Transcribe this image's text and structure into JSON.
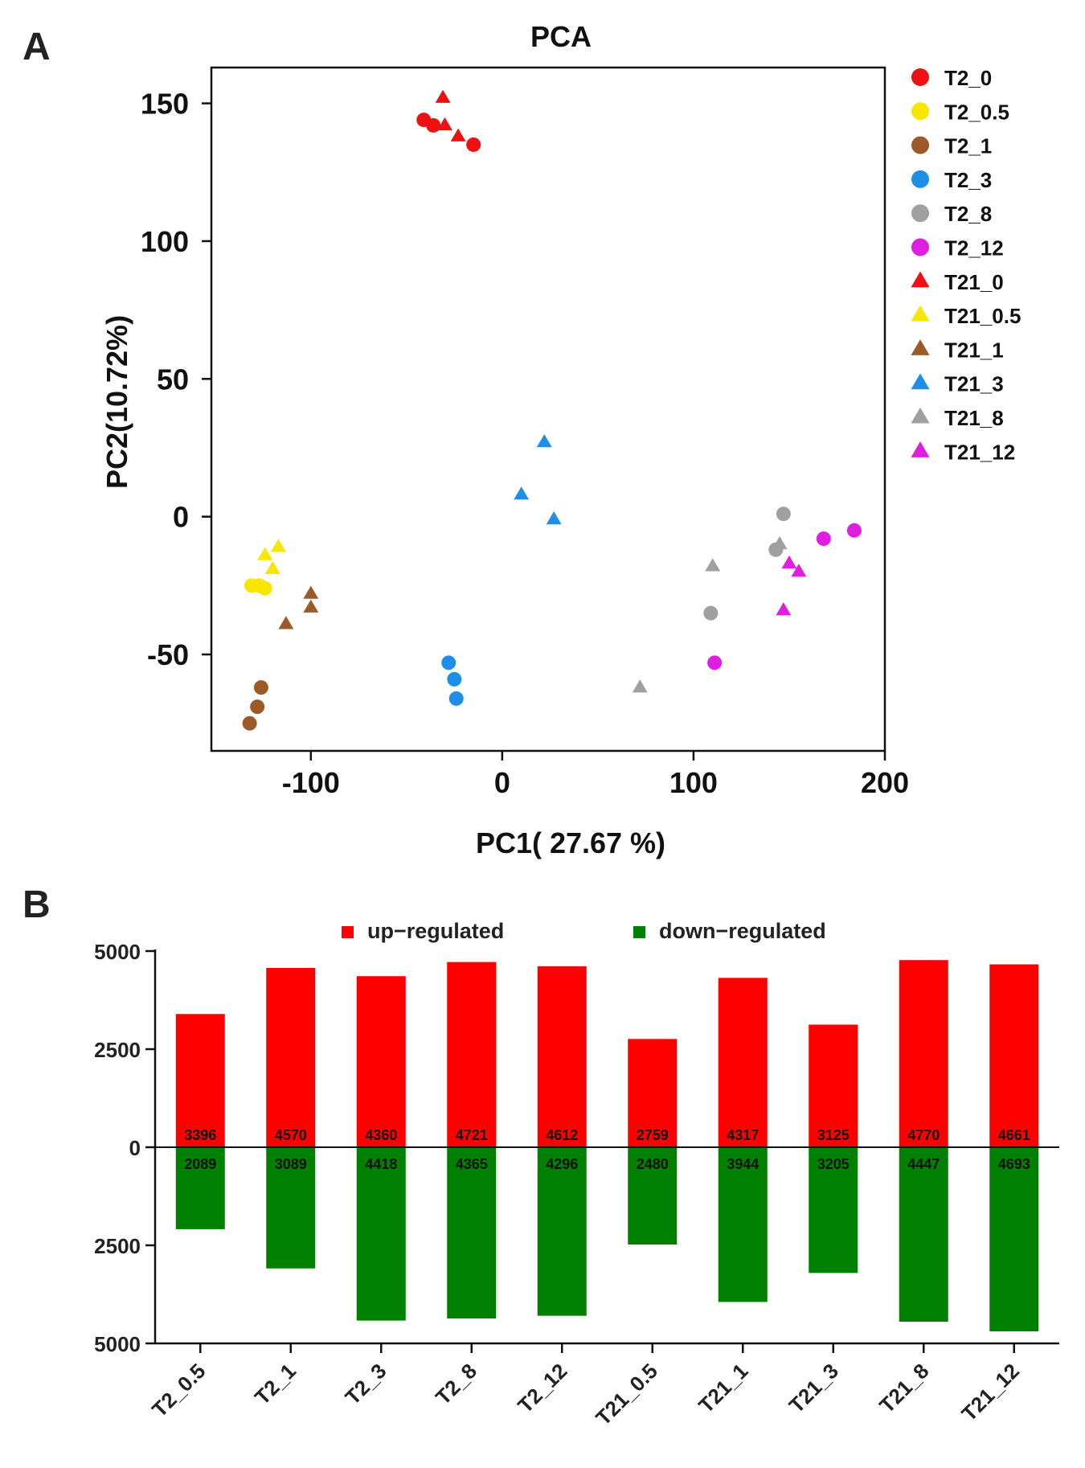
{
  "panels": {
    "a_label": "A",
    "b_label": "B"
  },
  "chart_data": [
    {
      "type": "scatter",
      "title": "PCA",
      "xlabel": "PC1( 27.67 %)",
      "ylabel": "PC2(10.72%)",
      "xlim": [
        -152,
        200
      ],
      "ylim": [
        -85,
        163
      ],
      "xticks": [
        -100,
        0,
        100,
        200
      ],
      "yticks": [
        -50,
        0,
        50,
        100,
        150
      ],
      "xtick_labels": [
        "-100",
        "0",
        "100",
        "200"
      ],
      "ytick_labels": [
        "-50",
        "0",
        "50",
        "100",
        "150"
      ],
      "grid": false,
      "legend_position": "right",
      "series": [
        {
          "name": "T2_0",
          "marker": "circle",
          "color": "#ee1111",
          "points": [
            [
              -41,
              144
            ],
            [
              -36,
              142
            ],
            [
              -15,
              135
            ]
          ]
        },
        {
          "name": "T2_0.5",
          "marker": "circle",
          "color": "#f6e600",
          "points": [
            [
              -131,
              -25
            ],
            [
              -127,
              -25
            ],
            [
              -124,
              -26
            ]
          ]
        },
        {
          "name": "T2_1",
          "marker": "circle",
          "color": "#9b5a28",
          "points": [
            [
              -126,
              -62
            ],
            [
              -128,
              -69
            ],
            [
              -132,
              -75
            ]
          ]
        },
        {
          "name": "T2_3",
          "marker": "circle",
          "color": "#1e8fe6",
          "points": [
            [
              -28,
              -53
            ],
            [
              -25,
              -59
            ],
            [
              -24,
              -66
            ]
          ]
        },
        {
          "name": "T2_8",
          "marker": "circle",
          "color": "#a0a0a0",
          "points": [
            [
              147,
              1
            ],
            [
              143,
              -12
            ],
            [
              109,
              -35
            ]
          ]
        },
        {
          "name": "T2_12",
          "marker": "circle",
          "color": "#e01ee0",
          "points": [
            [
              184,
              -5
            ],
            [
              168,
              -8
            ],
            [
              111,
              -53
            ]
          ]
        },
        {
          "name": "T21_0",
          "marker": "triangle",
          "color": "#ee1111",
          "points": [
            [
              -31,
              152
            ],
            [
              -30,
              142
            ],
            [
              -23,
              138
            ]
          ]
        },
        {
          "name": "T21_0.5",
          "marker": "triangle",
          "color": "#f6e600",
          "points": [
            [
              -117,
              -11
            ],
            [
              -124,
              -14
            ],
            [
              -120,
              -19
            ]
          ]
        },
        {
          "name": "T21_1",
          "marker": "triangle",
          "color": "#9b5a28",
          "points": [
            [
              -100,
              -28
            ],
            [
              -100,
              -33
            ],
            [
              -113,
              -39
            ]
          ]
        },
        {
          "name": "T21_3",
          "marker": "triangle",
          "color": "#1e8fe6",
          "points": [
            [
              22,
              27
            ],
            [
              10,
              8
            ],
            [
              27,
              -1
            ]
          ]
        },
        {
          "name": "T21_8",
          "marker": "triangle",
          "color": "#a0a0a0",
          "points": [
            [
              110,
              -18
            ],
            [
              145,
              -10
            ],
            [
              72,
              -62
            ]
          ]
        },
        {
          "name": "T21_12",
          "marker": "triangle",
          "color": "#e01ee0",
          "points": [
            [
              150,
              -17
            ],
            [
              155,
              -20
            ],
            [
              147,
              -34
            ]
          ]
        }
      ]
    },
    {
      "type": "bar",
      "title": "",
      "xlabel": "",
      "ylabel": "",
      "categories": [
        "T2_0.5",
        "T2_1",
        "T2_3",
        "T2_8",
        "T2_12",
        "T21_0.5",
        "T21_1",
        "T21_3",
        "T21_8",
        "T21_12"
      ],
      "ylim": [
        -5000,
        5000
      ],
      "yticks": [
        5000,
        2500,
        0,
        -2500,
        -5000
      ],
      "ytick_labels": [
        "5000",
        "2500",
        "0",
        "2500",
        "5000"
      ],
      "grid": false,
      "legend_position": "top",
      "series": [
        {
          "name": "up−regulated",
          "color": "#ff0000",
          "values": [
            3396,
            4570,
            4360,
            4721,
            4612,
            2759,
            4317,
            3125,
            4770,
            4661
          ]
        },
        {
          "name": "down−regulated",
          "color": "#008000",
          "values": [
            2089,
            3089,
            4418,
            4365,
            4296,
            2480,
            3944,
            3205,
            4447,
            4693
          ]
        }
      ]
    }
  ]
}
